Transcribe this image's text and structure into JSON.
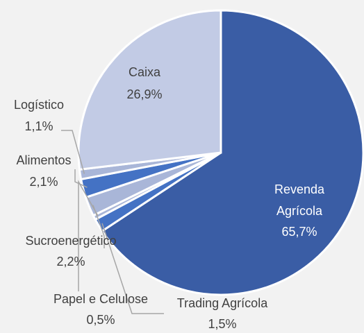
{
  "chart_data": {
    "type": "pie",
    "categories": [
      "Revenda Agrícola",
      "Trading Agrícola",
      "Papel e Celulose",
      "Sucroenergético",
      "Alimentos",
      "Logístico",
      "Caixa"
    ],
    "values": [
      65.7,
      1.5,
      0.5,
      2.2,
      2.1,
      1.1,
      26.9
    ],
    "value_labels": [
      "65,7%",
      "1,5%",
      "0,5%",
      "2,2%",
      "2,1%",
      "1,1%",
      "26,9%"
    ],
    "colors": [
      "#3a5da5",
      "#4472c4",
      "#a9b6d8",
      "#a9b6d8",
      "#4472c4",
      "#a9b6d8",
      "#c2cbe5"
    ]
  }
}
